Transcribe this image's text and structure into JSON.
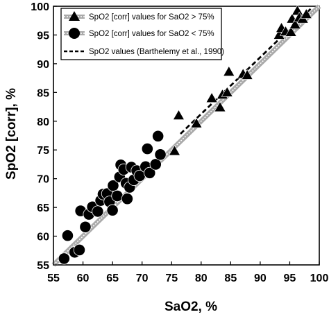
{
  "chart_data": {
    "type": "scatter",
    "xlabel": "SaO2, %",
    "ylabel": "SpO2 [corr], %",
    "xlim": [
      55,
      100
    ],
    "ylim": [
      55,
      100
    ],
    "x_ticks": [
      55,
      60,
      65,
      70,
      75,
      80,
      85,
      90,
      95,
      100
    ],
    "y_ticks": [
      55,
      60,
      65,
      70,
      75,
      80,
      85,
      90,
      95,
      100
    ],
    "grid": false,
    "legend_position": "top-left",
    "series": [
      {
        "name": "SpO2 [corr] values for SaO2 > 75%",
        "marker": "triangle",
        "points": [
          [
            75.5,
            74.8
          ],
          [
            76.2,
            81.0
          ],
          [
            79.2,
            79.6
          ],
          [
            81.8,
            84.0
          ],
          [
            83.2,
            82.4
          ],
          [
            83.6,
            84.6
          ],
          [
            84.4,
            85.0
          ],
          [
            84.7,
            88.6
          ],
          [
            87.1,
            88.2
          ],
          [
            87.8,
            88.0
          ],
          [
            93.2,
            95.0
          ],
          [
            93.6,
            96.2
          ],
          [
            94.3,
            95.6
          ],
          [
            95.2,
            95.5
          ],
          [
            95.4,
            97.8
          ],
          [
            95.9,
            96.8
          ],
          [
            96.3,
            99.2
          ],
          [
            96.6,
            98.0
          ],
          [
            97.2,
            97.8
          ],
          [
            97.8,
            98.6
          ]
        ]
      },
      {
        "name": "SpO2 [corr] values for SaO2 < 75%",
        "marker": "circle",
        "points": [
          [
            56.8,
            56.1
          ],
          [
            57.4,
            60.1
          ],
          [
            58.6,
            57.2
          ],
          [
            59.4,
            57.6
          ],
          [
            59.6,
            64.4
          ],
          [
            60.4,
            61.6
          ],
          [
            61.0,
            63.8
          ],
          [
            61.6,
            65.1
          ],
          [
            62.5,
            64.3
          ],
          [
            63.0,
            66.2
          ],
          [
            63.4,
            67.3
          ],
          [
            64.1,
            67.4
          ],
          [
            64.5,
            66.0
          ],
          [
            65.0,
            64.5
          ],
          [
            65.1,
            68.8
          ],
          [
            65.8,
            67.0
          ],
          [
            66.2,
            70.3
          ],
          [
            66.4,
            72.4
          ],
          [
            66.9,
            71.6
          ],
          [
            67.3,
            69.2
          ],
          [
            67.5,
            66.5
          ],
          [
            67.9,
            68.5
          ],
          [
            68.2,
            72.0
          ],
          [
            68.6,
            69.8
          ],
          [
            69.1,
            71.4
          ],
          [
            69.6,
            70.5
          ],
          [
            70.6,
            72.1
          ],
          [
            70.9,
            75.2
          ],
          [
            71.3,
            71.0
          ],
          [
            72.3,
            72.5
          ],
          [
            72.7,
            77.4
          ],
          [
            73.1,
            74.2
          ]
        ]
      },
      {
        "name": "SpO2 values (Barthelemy et al., 1990)",
        "marker": "dashed-line",
        "x": [
          76.5,
          98.8
        ],
        "y": [
          77.8,
          99.8
        ]
      }
    ],
    "regression_line": {
      "x": [
        55,
        100
      ],
      "y": [
        55.0,
        100.0
      ]
    }
  }
}
